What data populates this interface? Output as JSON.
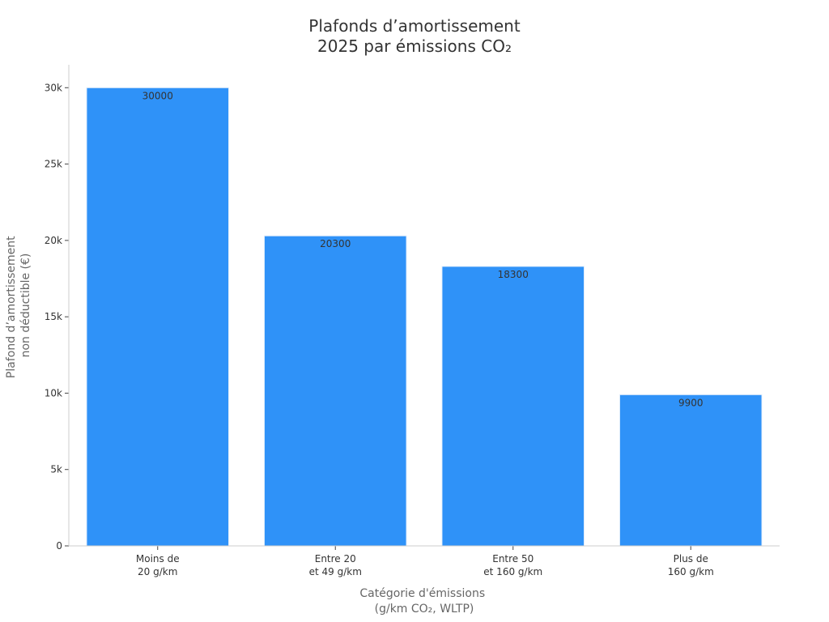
{
  "chart_data": {
    "type": "bar",
    "title": [
      "Plafonds d’amortissement",
      "2025 par émissions CO₂"
    ],
    "xlabel": [
      "Catégorie d'émissions",
      "(g/km CO₂, WLTP)"
    ],
    "ylabel": [
      "Plafond d’amortissement",
      "non déductible (€)"
    ],
    "categories": [
      [
        "Moins de",
        "20 g/km"
      ],
      [
        "Entre 20",
        "et 49 g/km"
      ],
      [
        "Entre 50",
        "et 160 g/km"
      ],
      [
        "Plus de",
        "160 g/km"
      ]
    ],
    "values": [
      30000,
      20300,
      18300,
      9900
    ],
    "data_labels": [
      "30000",
      "20300",
      "18300",
      "9900"
    ],
    "ylim": [
      0,
      31500
    ],
    "yticks": [
      0,
      5000,
      10000,
      15000,
      20000,
      25000,
      30000
    ],
    "ytick_labels": [
      "0",
      "5k",
      "10k",
      "15k",
      "20k",
      "25k",
      "30k"
    ],
    "bar_color": "#2f92f8",
    "grid": false,
    "legend": "none"
  }
}
